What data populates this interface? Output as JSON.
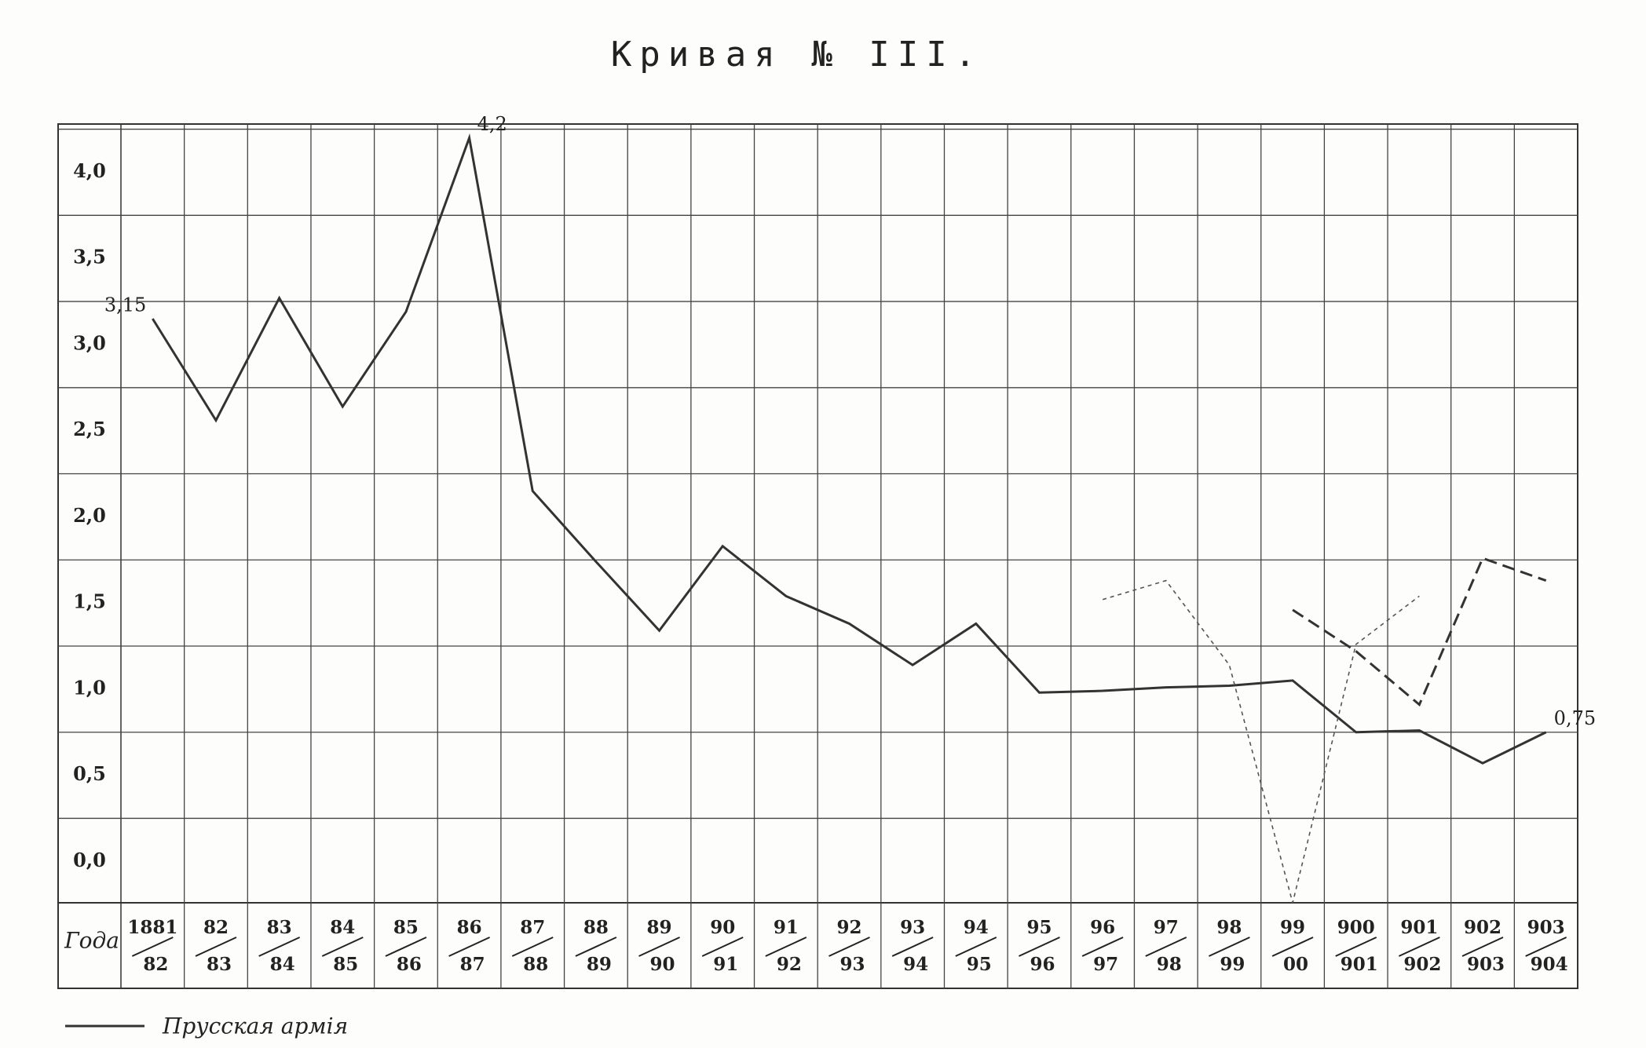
{
  "chart_data": {
    "type": "line",
    "title": "Кривая № III.",
    "xlabel": "Года",
    "categories": [
      [
        "1881",
        "82"
      ],
      [
        "82",
        "83"
      ],
      [
        "83",
        "84"
      ],
      [
        "84",
        "85"
      ],
      [
        "85",
        "86"
      ],
      [
        "86",
        "87"
      ],
      [
        "87",
        "88"
      ],
      [
        "88",
        "89"
      ],
      [
        "89",
        "90"
      ],
      [
        "90",
        "91"
      ],
      [
        "91",
        "92"
      ],
      [
        "92",
        "93"
      ],
      [
        "93",
        "94"
      ],
      [
        "94",
        "95"
      ],
      [
        "95",
        "96"
      ],
      [
        "96",
        "97"
      ],
      [
        "97",
        "98"
      ],
      [
        "98",
        "99"
      ],
      [
        "99",
        "00"
      ],
      [
        "900",
        "901"
      ],
      [
        "901",
        "902"
      ],
      [
        "902",
        "903"
      ],
      [
        "903",
        "904"
      ]
    ],
    "series": [
      {
        "name": "Прусская армія",
        "color": "#333333",
        "style": "solid",
        "values": [
          3.15,
          2.56,
          3.27,
          2.64,
          3.19,
          4.2,
          2.15,
          1.74,
          1.34,
          1.83,
          1.54,
          1.38,
          1.14,
          1.38,
          0.98,
          0.99,
          1.01,
          1.02,
          1.05,
          0.75,
          0.76,
          0.57,
          0.75
        ],
        "value_labels": [
          "3,15",
          null,
          null,
          null,
          null,
          "4,2",
          null,
          null,
          null,
          null,
          null,
          null,
          null,
          null,
          null,
          null,
          null,
          null,
          null,
          null,
          null,
          null,
          "0,75"
        ]
      },
      {
        "color": "#555555",
        "style": "dotted",
        "values": [
          null,
          null,
          null,
          null,
          null,
          null,
          null,
          null,
          null,
          null,
          null,
          null,
          null,
          null,
          null,
          1.52,
          1.63,
          1.14,
          -0.24,
          1.26,
          1.54,
          null,
          null
        ]
      },
      {
        "color": "#333333",
        "style": "dashed",
        "values": [
          null,
          null,
          null,
          null,
          null,
          null,
          null,
          null,
          null,
          null,
          null,
          null,
          null,
          null,
          null,
          null,
          null,
          null,
          1.46,
          1.22,
          0.91,
          1.76,
          1.63
        ]
      }
    ],
    "ylim": [
      -0.24,
      4.28
    ],
    "yticks": [
      {
        "value": 4.0,
        "label": "4,0"
      },
      {
        "value": 3.5,
        "label": "3,5"
      },
      {
        "value": 3.0,
        "label": "3,0"
      },
      {
        "value": 2.5,
        "label": "2,5"
      },
      {
        "value": 2.0,
        "label": "2,0"
      },
      {
        "value": 1.5,
        "label": "1,5"
      },
      {
        "value": 1.0,
        "label": "1,0"
      },
      {
        "value": 0.5,
        "label": "0,5"
      },
      {
        "value": 0.0,
        "label": "0,0"
      }
    ],
    "grid": true
  }
}
